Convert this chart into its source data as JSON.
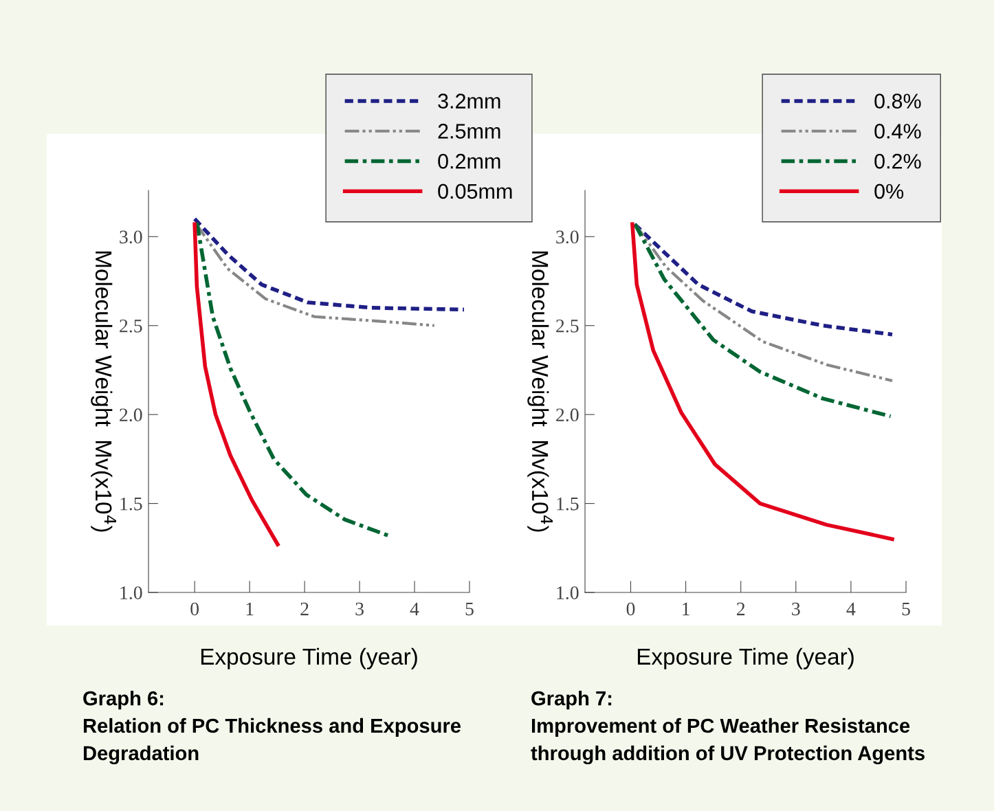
{
  "chart_data": [
    {
      "type": "line",
      "title": "Graph 6:\nRelation of PC Thickness and Exposure\nDegradation",
      "xlabel": "Exposure Time (year)",
      "ylabel": "Molecular Weight  Mv(x10$^{4}$)",
      "xlim": [
        -0.84,
        5
      ],
      "ylim": [
        1.0,
        3.26
      ],
      "xticks": [
        0,
        1,
        2,
        3,
        4,
        5
      ],
      "yticks": [
        {
          "value": 1.0,
          "label": "1.0"
        },
        {
          "value": 1.5,
          "label": "1.5"
        },
        {
          "value": 2.0,
          "label": "2.0"
        },
        {
          "value": 2.5,
          "label": "2.5"
        },
        {
          "value": 3.0,
          "label": "3.0"
        }
      ],
      "legend": "top",
      "grid": false,
      "marker": "none",
      "series": [
        {
          "name": "3.2mm",
          "color": "#1f1f86",
          "line_style": "dashed",
          "x": [
            0,
            0.6,
            1.22,
            2.06,
            3.22,
            4.9
          ],
          "values": [
            3.1,
            2.9,
            2.73,
            2.63,
            2.6,
            2.59
          ]
        },
        {
          "name": "2.5mm",
          "color": "#878787",
          "line_style": "dashdotdot",
          "x": [
            0.03,
            0.6,
            1.29,
            2.18,
            3.57,
            4.36
          ],
          "values": [
            3.07,
            2.82,
            2.65,
            2.55,
            2.52,
            2.5
          ]
        },
        {
          "name": "0.2mm",
          "color": "#006633",
          "line_style": "dashdot",
          "x": [
            0.04,
            0.33,
            0.65,
            1.0,
            1.44,
            2.03,
            2.73,
            3.52
          ],
          "values": [
            3.08,
            2.55,
            2.26,
            2.02,
            1.75,
            1.55,
            1.41,
            1.32
          ]
        },
        {
          "name": "0.05mm",
          "color": "#e3001b",
          "line_style": "solid",
          "x": [
            0,
            0.04,
            0.19,
            0.38,
            0.65,
            1.04,
            1.51
          ],
          "values": [
            3.07,
            2.72,
            2.27,
            2.0,
            1.77,
            1.52,
            1.27
          ]
        }
      ]
    },
    {
      "type": "line",
      "title": "Graph 7:\nImprovement of PC Weather Resistance\nthrough addition of UV Protection Agents",
      "xlabel": "Exposure Time (year)",
      "ylabel": "Molecular Weight  Mv(x10$^{4}$)",
      "xlim": [
        -0.83,
        5
      ],
      "ylim": [
        1.0,
        3.26
      ],
      "xticks": [
        0,
        1,
        2,
        3,
        4,
        5
      ],
      "yticks": [
        {
          "value": 1.0,
          "label": "1.0"
        },
        {
          "value": 1.5,
          "label": "1.5"
        },
        {
          "value": 2.0,
          "label": "2.0"
        },
        {
          "value": 2.5,
          "label": "2.5"
        },
        {
          "value": 3.0,
          "label": "3.0"
        }
      ],
      "legend": "top",
      "grid": false,
      "marker": "none",
      "series": [
        {
          "name": "0.8%",
          "color": "#1f1f86",
          "line_style": "dashed",
          "x": [
            0.07,
            1.23,
            2.2,
            3.49,
            4.75
          ],
          "values": [
            3.07,
            2.73,
            2.58,
            2.5,
            2.45
          ]
        },
        {
          "name": "0.4%",
          "color": "#878787",
          "line_style": "dashdotdot",
          "x": [
            0.08,
            0.64,
            1.31,
            2.4,
            3.56,
            4.75
          ],
          "values": [
            3.07,
            2.83,
            2.64,
            2.41,
            2.28,
            2.19
          ]
        },
        {
          "name": "0.2%",
          "color": "#006633",
          "line_style": "dashdot",
          "x": [
            0.08,
            0.61,
            1.5,
            2.35,
            3.49,
            4.72
          ],
          "values": [
            3.07,
            2.76,
            2.42,
            2.24,
            2.09,
            1.99
          ]
        },
        {
          "name": "0%",
          "color": "#e3001b",
          "line_style": "solid",
          "x": [
            0.03,
            0.11,
            0.41,
            0.92,
            1.53,
            2.35,
            3.56,
            4.75
          ],
          "values": [
            3.07,
            2.73,
            2.36,
            2.01,
            1.72,
            1.5,
            1.38,
            1.3
          ]
        }
      ]
    }
  ]
}
